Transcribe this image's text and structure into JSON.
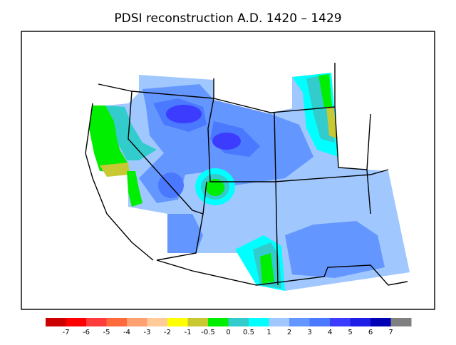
{
  "title": "PDSI reconstruction A.D. 1420 – 1429",
  "colorbar": {
    "colors": [
      "#cc0000",
      "#ff0000",
      "#ff3c3c",
      "#ff6a3c",
      "#ffa070",
      "#ffcc99",
      "#ffff00",
      "#c8c832",
      "#00ee00",
      "#33cccc",
      "#00ffff",
      "#a0c8ff",
      "#6496ff",
      "#4a78ff",
      "#3c3cff",
      "#1e1ee6",
      "#0000b4",
      "#808080"
    ],
    "ticks": [
      -7,
      -6,
      -5,
      -4,
      -3,
      -2,
      -1,
      -0.5,
      0,
      0.5,
      1,
      2,
      3,
      4,
      5,
      6,
      7
    ]
  }
}
